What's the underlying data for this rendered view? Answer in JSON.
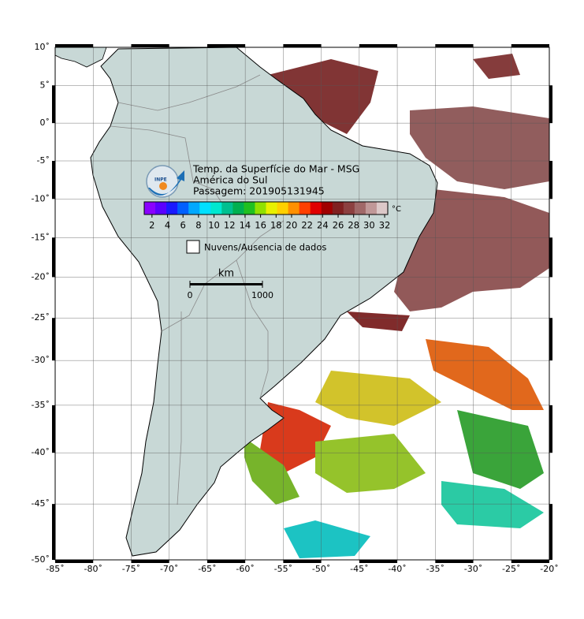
{
  "map": {
    "title": "Temp. da Superfície do Mar - MSG",
    "region": "América do Sul",
    "pass": "Passagem: 201905131945",
    "logo_text": "INPE",
    "lon_range": [
      -85,
      -20
    ],
    "lat_range": [
      10,
      -50
    ],
    "lon_ticks": [
      {
        "value": -85,
        "label": "-85˚"
      },
      {
        "value": -80,
        "label": "-80˚"
      },
      {
        "value": -75,
        "label": "-75˚"
      },
      {
        "value": -70,
        "label": "-70˚"
      },
      {
        "value": -65,
        "label": "-65˚"
      },
      {
        "value": -60,
        "label": "-60˚"
      },
      {
        "value": -55,
        "label": "-55˚"
      },
      {
        "value": -50,
        "label": "-50˚"
      },
      {
        "value": -45,
        "label": "-45˚"
      },
      {
        "value": -40,
        "label": "-40˚"
      },
      {
        "value": -35,
        "label": "-35˚"
      },
      {
        "value": -30,
        "label": "-30˚"
      },
      {
        "value": -25,
        "label": "-25˚"
      },
      {
        "value": -20,
        "label": "-20˚"
      }
    ],
    "lat_ticks": [
      {
        "value": 10,
        "label": "10˚"
      },
      {
        "value": 5,
        "label": "5˚"
      },
      {
        "value": 0,
        "label": "0˚"
      },
      {
        "value": -5,
        "label": "-5˚"
      },
      {
        "value": -10,
        "label": "-10˚"
      },
      {
        "value": -15,
        "label": "-15˚"
      },
      {
        "value": -20,
        "label": "-20˚"
      },
      {
        "value": -25,
        "label": "-25˚"
      },
      {
        "value": -30,
        "label": "-30˚"
      },
      {
        "value": -35,
        "label": "-35˚"
      },
      {
        "value": -40,
        "label": "-40˚"
      },
      {
        "value": -45,
        "label": "-45˚"
      },
      {
        "value": -50,
        "label": "-50˚"
      }
    ],
    "colorbar": {
      "unit": "°C",
      "range": [
        1,
        32.4
      ],
      "ticks": [
        2,
        4,
        6,
        8,
        10,
        12,
        14,
        16,
        18,
        20,
        22,
        24,
        26,
        28,
        30,
        32
      ],
      "colors": [
        "#8a00ff",
        "#5a00ff",
        "#1a1aff",
        "#0060ff",
        "#00a8ff",
        "#00e0ff",
        "#00e8d0",
        "#00c090",
        "#00b050",
        "#20c020",
        "#90e000",
        "#e8f000",
        "#ffd000",
        "#ff9000",
        "#ff4000",
        "#e00000",
        "#a00000",
        "#802020",
        "#8c4040",
        "#a06868",
        "#c09898",
        "#dcc8c8"
      ]
    },
    "legend_label": "Nuvens/Ausencia de dados",
    "scale_bar": {
      "unit": "km",
      "ticks": [
        0,
        1000
      ]
    }
  }
}
